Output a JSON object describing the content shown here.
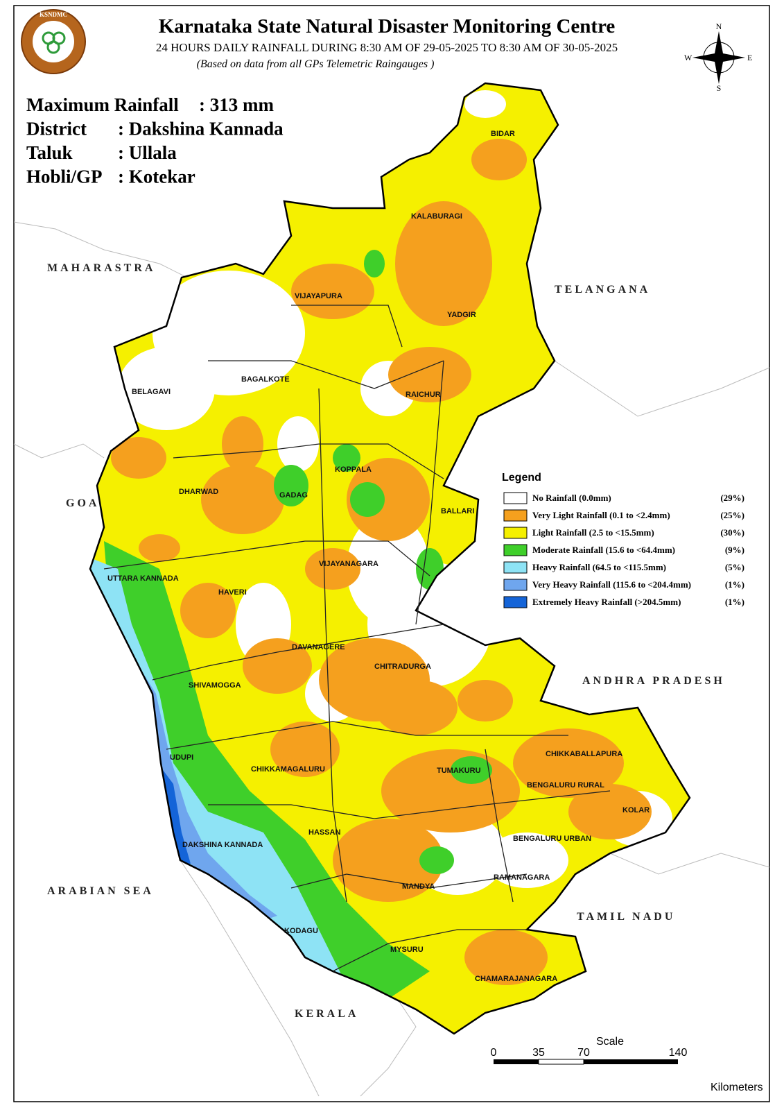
{
  "header": {
    "title": "Karnataka State Natural Disaster Monitoring Centre",
    "subtitle": "24 HOURS DAILY RAINFALL DURING 8:30 AM OF 29-05-2025 TO 8:30 AM OF 30-05-2025",
    "note": "(Based on data from all GPs Telemetric Raingauges )",
    "logo": "KSNDMC"
  },
  "info": [
    {
      "label": "Maximum Rainfall",
      "value": ": 313 mm"
    },
    {
      "label": "District",
      "value": ": Dakshina Kannada"
    },
    {
      "label": "Taluk",
      "value": ": Ullala"
    },
    {
      "label": "Hobli/GP",
      "value": ": Kotekar"
    }
  ],
  "compass": {
    "n": "N",
    "e": "E",
    "s": "S",
    "w": "W"
  },
  "regions": [
    "MAHARASTRA",
    "TELANGANA",
    "GOA",
    "ANDHRA PRADESH",
    "ARABIAN SEA",
    "TAMIL NADU",
    "KERALA"
  ],
  "districts": [
    "BIDAR",
    "KALABURAGI",
    "VIJAYAPURA",
    "YADGIR",
    "BAGALKOTE",
    "BELAGAVI",
    "RAICHUR",
    "KOPPALA",
    "DHARWAD",
    "GADAG",
    "BALLARI",
    "VIJAYANAGARA",
    "UTTARA KANNADA",
    "HAVERI",
    "DAVANAGERE",
    "CHITRADURGA",
    "SHIVAMOGGA",
    "UDUPI",
    "CHIKKAMAGALURU",
    "TUMAKURU",
    "CHIKKABALLAPURA",
    "BENGALURU RURAL",
    "KOLAR",
    "HASSAN",
    "DAKSHINA KANNADA",
    "BENGALURU URBAN",
    "MANDYA",
    "RAMANAGARA",
    "KODAGU",
    "MYSURU",
    "CHAMARAJANAGARA"
  ],
  "legend": {
    "title": "Legend",
    "items": [
      {
        "label": "No Rainfall (0.0mm)",
        "share": "(29%)",
        "color": "#ffffff"
      },
      {
        "label": "Very Light Rainfall (0.1 to <2.4mm)",
        "share": "(25%)",
        "color": "#f5a01e"
      },
      {
        "label": "Light Rainfall (2.5 to <15.5mm)",
        "share": "(30%)",
        "color": "#f5f000"
      },
      {
        "label": "Moderate Rainfall (15.6 to <64.4mm)",
        "share": "(9%)",
        "color": "#3fcf2a"
      },
      {
        "label": "Heavy Rainfall (64.5 to <115.5mm)",
        "share": "(5%)",
        "color": "#8ee3f5"
      },
      {
        "label": "Very Heavy Rainfall (115.6 to <204.4mm)",
        "share": "(1%)",
        "color": "#6fa6ee"
      },
      {
        "label": "Extremely Heavy Rainfall (>204.5mm)",
        "share": "(1%)",
        "color": "#1464d8"
      }
    ]
  },
  "scale": {
    "title": "Scale",
    "ticks": [
      "0",
      "35",
      "70",
      "140"
    ],
    "unit": "Kilometers"
  }
}
